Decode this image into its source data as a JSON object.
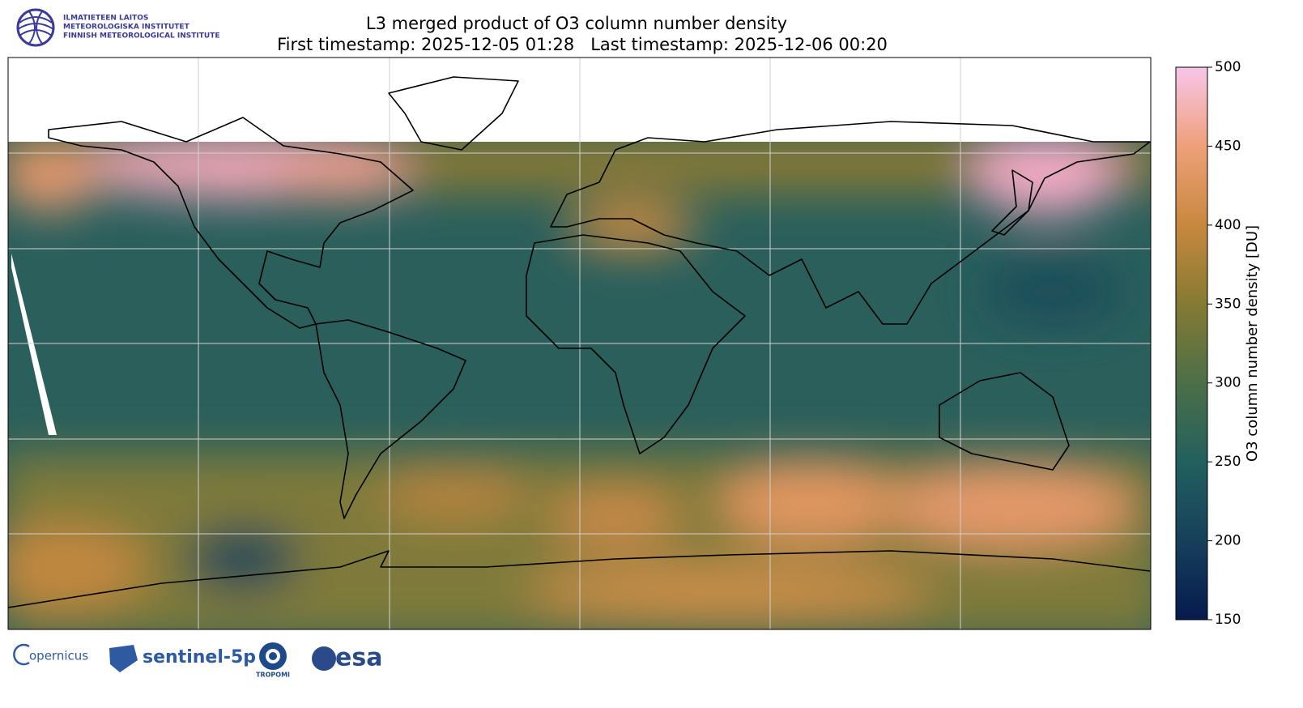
{
  "header": {
    "institute": [
      "ILMATIETEEN LAITOS",
      "METEOROLOGISKA INSTITUTET",
      "FINNISH METEOROLOGICAL INSTITUTE"
    ],
    "title": "L3 merged product of O3 column number density",
    "subtitle": "First timestamp: 2025-12-05 01:28   Last timestamp: 2025-12-06 00:20"
  },
  "colorbar": {
    "label": "O3 column number density [DU]",
    "lim": [
      150,
      500
    ],
    "ticks": [
      150,
      200,
      250,
      300,
      350,
      400,
      450,
      500
    ],
    "colors": [
      "#061a4e",
      "#17405a",
      "#22605e",
      "#4c6f48",
      "#857a33",
      "#c8883e",
      "#eea07a",
      "#f8c6ea"
    ]
  },
  "footer": {
    "copernicus": "opernicus",
    "sentinel": "sentinel-5p",
    "tropomi": "TROPOMI",
    "esa": "esa"
  }
}
